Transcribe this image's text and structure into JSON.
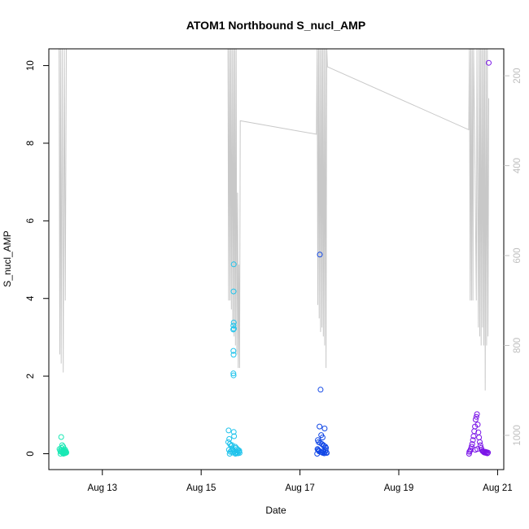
{
  "chart_data": {
    "type": "scatter",
    "title": "ATOM1 Northbound S_nucl_AMP",
    "xlabel": "Date",
    "ylabel": "S_nucl_AMP",
    "xlim": [
      "2023-08-11T22:00:00",
      "2023-08-21T03:00:00"
    ],
    "ylim": [
      0,
      10.4
    ],
    "x_ticks": [
      {
        "date": "2023-08-13",
        "label": "Aug 13"
      },
      {
        "date": "2023-08-15",
        "label": "Aug 15"
      },
      {
        "date": "2023-08-17",
        "label": "Aug 17"
      },
      {
        "date": "2023-08-19",
        "label": "Aug 19"
      },
      {
        "date": "2023-08-21",
        "label": "Aug 21"
      }
    ],
    "y_ticks": [
      "0",
      "2",
      "4",
      "6",
      "8",
      "10"
    ],
    "right_axis": {
      "reversed": true,
      "ylim": [
        1040,
        140
      ],
      "ticks": [
        "200",
        "400",
        "600",
        "800",
        "1000"
      ],
      "color": "#c0c0c0"
    },
    "depth_line": {
      "color": "#c8c8c8",
      "points": [
        [
          "2023-08-12T03:00:00",
          140
        ],
        [
          "2023-08-12T03:20:00",
          820
        ],
        [
          "2023-08-12T03:40:00",
          140
        ],
        [
          "2023-08-12T04:00:00",
          840
        ],
        [
          "2023-08-12T04:30:00",
          140
        ],
        [
          "2023-08-12T05:00:00",
          860
        ],
        [
          "2023-08-12T05:30:00",
          140
        ],
        [
          "2023-08-12T06:00:00",
          700
        ],
        [
          "2023-08-12T06:30:00",
          140
        ],
        [
          "2023-08-12T07:00:00",
          140
        ],
        [
          "2023-08-15T13:00:00",
          140
        ],
        [
          "2023-08-15T13:20:00",
          700
        ],
        [
          "2023-08-15T13:40:00",
          140
        ],
        [
          "2023-08-15T14:00:00",
          700
        ],
        [
          "2023-08-15T14:20:00",
          140
        ],
        [
          "2023-08-15T14:40:00",
          720
        ],
        [
          "2023-08-15T15:00:00",
          140
        ],
        [
          "2023-08-15T15:20:00",
          760
        ],
        [
          "2023-08-15T15:40:00",
          140
        ],
        [
          "2023-08-15T16:00:00",
          780
        ],
        [
          "2023-08-15T16:20:00",
          140
        ],
        [
          "2023-08-15T16:40:00",
          800
        ],
        [
          "2023-08-15T17:00:00",
          140
        ],
        [
          "2023-08-15T17:20:00",
          820
        ],
        [
          "2023-08-15T17:40:00",
          460
        ],
        [
          "2023-08-15T18:00:00",
          850
        ],
        [
          "2023-08-15T18:20:00",
          620
        ],
        [
          "2023-08-15T18:40:00",
          850
        ],
        [
          "2023-08-15T19:00:00",
          300
        ],
        [
          "2023-08-17T08:00:00",
          330
        ],
        [
          "2023-08-17T08:20:00",
          140
        ],
        [
          "2023-08-17T08:40:00",
          710
        ],
        [
          "2023-08-17T09:00:00",
          140
        ],
        [
          "2023-08-17T09:20:00",
          740
        ],
        [
          "2023-08-17T09:40:00",
          140
        ],
        [
          "2023-08-17T10:00:00",
          770
        ],
        [
          "2023-08-17T10:20:00",
          140
        ],
        [
          "2023-08-17T10:40:00",
          760
        ],
        [
          "2023-08-17T11:00:00",
          140
        ],
        [
          "2023-08-17T11:20:00",
          780
        ],
        [
          "2023-08-17T11:40:00",
          140
        ],
        [
          "2023-08-17T12:00:00",
          800
        ],
        [
          "2023-08-17T12:20:00",
          140
        ],
        [
          "2023-08-17T12:40:00",
          850
        ],
        [
          "2023-08-17T13:00:00",
          140
        ],
        [
          "2023-08-17T13:20:00",
          180
        ],
        [
          "2023-08-20T10:00:00",
          320
        ],
        [
          "2023-08-20T10:20:00",
          140
        ],
        [
          "2023-08-20T10:40:00",
          700
        ],
        [
          "2023-08-20T11:00:00",
          140
        ],
        [
          "2023-08-20T11:20:00",
          700
        ],
        [
          "2023-08-20T11:40:00",
          140
        ],
        [
          "2023-08-20T12:00:00",
          700
        ],
        [
          "2023-08-20T12:20:00",
          140
        ],
        [
          "2023-08-20T13:00:00",
          400
        ],
        [
          "2023-08-20T13:40:00",
          700
        ],
        [
          "2023-08-20T14:00:00",
          140
        ],
        [
          "2023-08-20T14:40:00",
          760
        ],
        [
          "2023-08-20T15:00:00",
          140
        ],
        [
          "2023-08-20T15:20:00",
          780
        ],
        [
          "2023-08-20T15:40:00",
          140
        ],
        [
          "2023-08-20T16:00:00",
          800
        ],
        [
          "2023-08-20T16:20:00",
          140
        ],
        [
          "2023-08-20T16:40:00",
          760
        ],
        [
          "2023-08-20T17:00:00",
          140
        ],
        [
          "2023-08-20T17:20:00",
          800
        ],
        [
          "2023-08-20T17:40:00",
          140
        ],
        [
          "2023-08-20T18:00:00",
          900
        ],
        [
          "2023-08-20T18:20:00",
          140
        ],
        [
          "2023-08-20T18:40:00",
          800
        ],
        [
          "2023-08-20T19:00:00",
          140
        ],
        [
          "2023-08-20T19:20:00",
          780
        ],
        [
          "2023-08-20T19:40:00",
          250
        ]
      ]
    },
    "series": [
      {
        "color": "#19e8b4",
        "points": [
          [
            "2023-08-12T04:00:00",
            0.43
          ],
          [
            "2023-08-12T04:30:00",
            0.22
          ],
          [
            "2023-08-12T05:00:00",
            0.18
          ],
          [
            "2023-08-12T03:10:00",
            0.12
          ],
          [
            "2023-08-12T03:30:00",
            0.08
          ],
          [
            "2023-08-12T03:50:00",
            0.05
          ],
          [
            "2023-08-12T04:10:00",
            0.1
          ],
          [
            "2023-08-12T04:20:00",
            0.04
          ],
          [
            "2023-08-12T04:40:00",
            0.07
          ],
          [
            "2023-08-12T04:50:00",
            0.02
          ],
          [
            "2023-08-12T05:10:00",
            0.09
          ],
          [
            "2023-08-12T05:20:00",
            0.03
          ],
          [
            "2023-08-12T05:30:00",
            0.06
          ],
          [
            "2023-08-12T05:40:00",
            0.01
          ],
          [
            "2023-08-12T05:50:00",
            0.11
          ],
          [
            "2023-08-12T06:00:00",
            0.04
          ],
          [
            "2023-08-12T06:10:00",
            0.02
          ],
          [
            "2023-08-12T06:20:00",
            0.05
          ],
          [
            "2023-08-12T06:30:00",
            0.03
          ],
          [
            "2023-08-12T03:40:00",
            0.0
          ],
          [
            "2023-08-12T04:05:00",
            0.15
          ],
          [
            "2023-08-12T05:05:00",
            0.0
          ],
          [
            "2023-08-12T06:05:00",
            0.08
          ]
        ]
      },
      {
        "color": "#1ec3ec",
        "points": [
          [
            "2023-08-15T15:50:00",
            4.88
          ],
          [
            "2023-08-15T15:45:00",
            4.18
          ],
          [
            "2023-08-15T15:50:00",
            3.38
          ],
          [
            "2023-08-15T15:40:00",
            3.3
          ],
          [
            "2023-08-15T15:35:00",
            3.2
          ],
          [
            "2023-08-15T15:55:00",
            3.22
          ],
          [
            "2023-08-15T15:40:00",
            2.65
          ],
          [
            "2023-08-15T15:45:00",
            2.55
          ],
          [
            "2023-08-15T15:40:00",
            2.07
          ],
          [
            "2023-08-15T15:45:00",
            2.02
          ],
          [
            "2023-08-15T13:20:00",
            0.6
          ],
          [
            "2023-08-15T15:50:00",
            0.56
          ],
          [
            "2023-08-15T16:00:00",
            0.45
          ],
          [
            "2023-08-15T13:40:00",
            0.38
          ],
          [
            "2023-08-15T13:10:00",
            0.3
          ],
          [
            "2023-08-15T14:00:00",
            0.25
          ],
          [
            "2023-08-15T14:30:00",
            0.2
          ],
          [
            "2023-08-15T15:00:00",
            0.22
          ],
          [
            "2023-08-15T16:30:00",
            0.18
          ],
          [
            "2023-08-15T17:00:00",
            0.15
          ],
          [
            "2023-08-15T17:30:00",
            0.12
          ],
          [
            "2023-08-15T18:00:00",
            0.1
          ],
          [
            "2023-08-15T18:30:00",
            0.08
          ],
          [
            "2023-08-15T13:30:00",
            0.1
          ],
          [
            "2023-08-15T14:10:00",
            0.05
          ],
          [
            "2023-08-15T14:50:00",
            0.07
          ],
          [
            "2023-08-15T15:20:00",
            0.03
          ],
          [
            "2023-08-15T16:10:00",
            0.06
          ],
          [
            "2023-08-15T16:50:00",
            0.02
          ],
          [
            "2023-08-15T17:20:00",
            0.04
          ],
          [
            "2023-08-15T17:50:00",
            0.01
          ],
          [
            "2023-08-15T18:20:00",
            0.05
          ],
          [
            "2023-08-15T18:40:00",
            0.02
          ],
          [
            "2023-08-15T13:50:00",
            0.0
          ],
          [
            "2023-08-15T15:10:00",
            0.12
          ],
          [
            "2023-08-15T16:40:00",
            0.0
          ]
        ]
      },
      {
        "color": "#1248e6",
        "points": [
          [
            "2023-08-17T09:40:00",
            5.13
          ],
          [
            "2023-08-17T10:00:00",
            1.65
          ],
          [
            "2023-08-17T09:30:00",
            0.7
          ],
          [
            "2023-08-17T12:00:00",
            0.65
          ],
          [
            "2023-08-17T10:20:00",
            0.48
          ],
          [
            "2023-08-17T11:00:00",
            0.42
          ],
          [
            "2023-08-17T08:40:00",
            0.35
          ],
          [
            "2023-08-17T09:00:00",
            0.3
          ],
          [
            "2023-08-17T09:50:00",
            0.28
          ],
          [
            "2023-08-17T10:40:00",
            0.25
          ],
          [
            "2023-08-17T11:20:00",
            0.22
          ],
          [
            "2023-08-17T11:40:00",
            0.2
          ],
          [
            "2023-08-17T12:20:00",
            0.18
          ],
          [
            "2023-08-17T12:40:00",
            0.15
          ],
          [
            "2023-08-17T08:30:00",
            0.12
          ],
          [
            "2023-08-17T08:50:00",
            0.1
          ],
          [
            "2023-08-17T09:10:00",
            0.08
          ],
          [
            "2023-08-17T09:20:00",
            0.06
          ],
          [
            "2023-08-17T10:10:00",
            0.05
          ],
          [
            "2023-08-17T10:30:00",
            0.04
          ],
          [
            "2023-08-17T10:50:00",
            0.03
          ],
          [
            "2023-08-17T11:10:00",
            0.02
          ],
          [
            "2023-08-17T11:30:00",
            0.07
          ],
          [
            "2023-08-17T11:50:00",
            0.01
          ],
          [
            "2023-08-17T12:10:00",
            0.05
          ],
          [
            "2023-08-17T12:30:00",
            0.09
          ],
          [
            "2023-08-17T12:50:00",
            0.03
          ],
          [
            "2023-08-17T08:20:00",
            0.0
          ],
          [
            "2023-08-17T13:00:00",
            0.02
          ]
        ]
      },
      {
        "color": "#7a14e8",
        "points": [
          [
            "2023-08-20T19:40:00",
            10.07
          ],
          [
            "2023-08-20T14:00:00",
            1.02
          ],
          [
            "2023-08-20T13:40:00",
            0.95
          ],
          [
            "2023-08-20T13:20:00",
            0.88
          ],
          [
            "2023-08-20T14:20:00",
            0.75
          ],
          [
            "2023-08-20T13:00:00",
            0.7
          ],
          [
            "2023-08-20T12:40:00",
            0.58
          ],
          [
            "2023-08-20T14:40:00",
            0.55
          ],
          [
            "2023-08-20T12:20:00",
            0.45
          ],
          [
            "2023-08-20T15:00:00",
            0.42
          ],
          [
            "2023-08-20T12:00:00",
            0.35
          ],
          [
            "2023-08-20T15:20:00",
            0.3
          ],
          [
            "2023-08-20T11:40:00",
            0.25
          ],
          [
            "2023-08-20T15:40:00",
            0.22
          ],
          [
            "2023-08-20T11:20:00",
            0.18
          ],
          [
            "2023-08-20T16:00:00",
            0.15
          ],
          [
            "2023-08-20T11:00:00",
            0.12
          ],
          [
            "2023-08-20T16:20:00",
            0.1
          ],
          [
            "2023-08-20T10:40:00",
            0.08
          ],
          [
            "2023-08-20T16:40:00",
            0.07
          ],
          [
            "2023-08-20T10:20:00",
            0.05
          ],
          [
            "2023-08-20T17:00:00",
            0.06
          ],
          [
            "2023-08-20T17:20:00",
            0.04
          ],
          [
            "2023-08-20T17:40:00",
            0.03
          ],
          [
            "2023-08-20T18:00:00",
            0.05
          ],
          [
            "2023-08-20T18:20:00",
            0.02
          ],
          [
            "2023-08-20T18:40:00",
            0.04
          ],
          [
            "2023-08-20T19:00:00",
            0.01
          ],
          [
            "2023-08-20T19:20:00",
            0.03
          ],
          [
            "2023-08-20T10:10:00",
            0.0
          ],
          [
            "2023-08-20T13:10:00",
            0.1
          ],
          [
            "2023-08-20T14:10:00",
            0.12
          ]
        ]
      }
    ],
    "grid": false,
    "legend": "none"
  }
}
